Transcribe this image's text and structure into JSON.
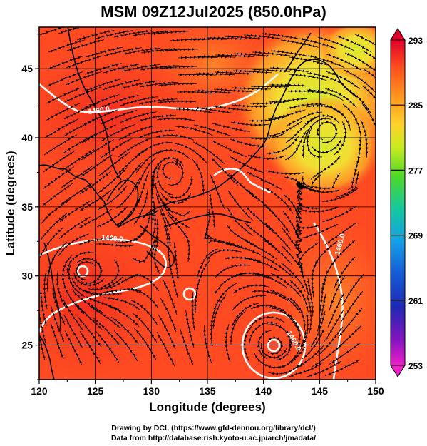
{
  "title": "MSM 09Z12Jul2025 (850.0hPa)",
  "map": {
    "lon_range": [
      120,
      150
    ],
    "lat_range": [
      22.5,
      48
    ],
    "lon_ticks": [
      "120",
      "125",
      "130",
      "135",
      "140",
      "145",
      "150"
    ],
    "lat_ticks": [
      "25",
      "30",
      "35",
      "40",
      "45"
    ],
    "xlabel": "Longitude (degrees)",
    "ylabel": "Latitude  (degrees)",
    "contour_labels": [
      "1460.0",
      "1460.0",
      "1460.0",
      "1460.0"
    ]
  },
  "colorbar": {
    "ticks": [
      "293",
      "285",
      "277",
      "269",
      "261",
      "253"
    ],
    "colors": [
      "#e0002a",
      "#ff5a1c",
      "#ff9a1e",
      "#ffd22a",
      "#d6f01e",
      "#6cdc1e",
      "#1ec850",
      "#14c8b4",
      "#1496e6",
      "#145adc",
      "#1e28b4",
      "#5a14b4",
      "#b414c8",
      "#f01ec8"
    ]
  },
  "credits": {
    "line1": "Drawing by DCL (https://www.gfd-dennou.org/library/dcl/)",
    "line2": "Data from http://database.rish.kyoto-u.ac.jp/arch/jmadata/"
  }
}
